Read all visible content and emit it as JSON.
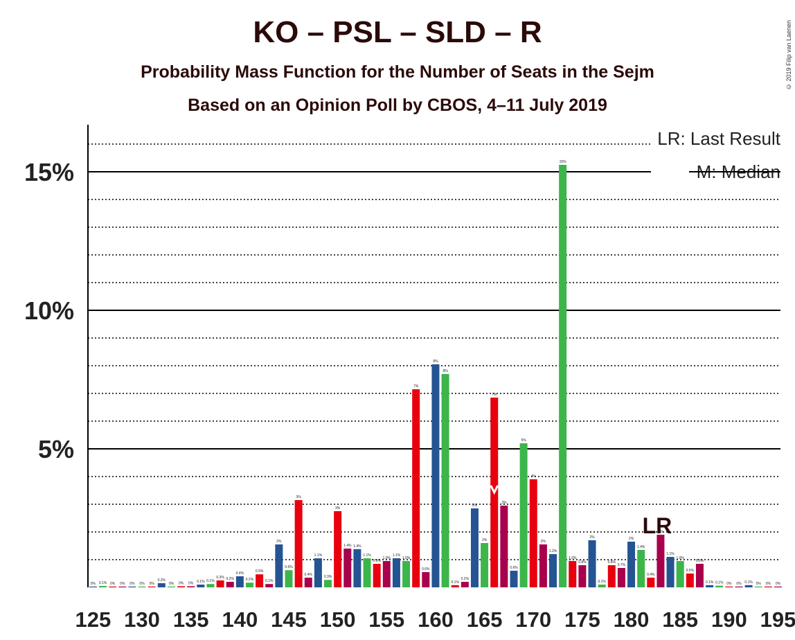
{
  "title": "KO – PSL – SLD – R",
  "subtitle": "Probability Mass Function for the Number of Seats in the Sejm",
  "subtitle2": "Based on an Opinion Poll by CBOS, 4–11 July 2019",
  "copyright": "© 2019 Filip van Laenen",
  "legend": {
    "lr": "LR: Last Result",
    "median": "M: Median"
  },
  "colors": {
    "red": "#e8000f",
    "blue": "#255493",
    "green": "#3cb64a",
    "darkred": "#a8004c",
    "axis": "#000000"
  },
  "chart_data": {
    "type": "bar",
    "xlabel": "",
    "ylabel": "",
    "x_ticks": [
      "125",
      "130",
      "135",
      "140",
      "145",
      "150",
      "155",
      "160",
      "165",
      "170",
      "175",
      "180",
      "185",
      "190",
      "195"
    ],
    "y_ticks": [
      {
        "value": 5,
        "label": "5%"
      },
      {
        "value": 10,
        "label": "10%"
      },
      {
        "value": 15,
        "label": "15%"
      }
    ],
    "ylim": [
      0,
      16.7
    ],
    "xlim": [
      124.5,
      195.5
    ],
    "grid": "dotted lines every 1%, solid lines every 5%",
    "legend_position": "top-right",
    "last_result_seat": 183,
    "median_seat": 166,
    "last_result_marker": "LR",
    "median_marker": "M",
    "bars": [
      {
        "seats": 125,
        "value": 0.02,
        "label": "0%",
        "color": "blue"
      },
      {
        "seats": 126,
        "value": 0.05,
        "label": "0.1%",
        "color": "green"
      },
      {
        "seats": 127,
        "value": 0.02,
        "label": "0%",
        "color": "red"
      },
      {
        "seats": 128,
        "value": 0.02,
        "label": "0%",
        "color": "darkred"
      },
      {
        "seats": 129,
        "value": 0.02,
        "label": "0%",
        "color": "blue"
      },
      {
        "seats": 130,
        "value": 0.02,
        "label": "0%",
        "color": "green"
      },
      {
        "seats": 131,
        "value": 0.02,
        "label": "0%",
        "color": "red"
      },
      {
        "seats": 132,
        "value": 0.15,
        "label": "0.2%",
        "color": "blue"
      },
      {
        "seats": 133,
        "value": 0.02,
        "label": "0%",
        "color": "green"
      },
      {
        "seats": 134,
        "value": 0.04,
        "label": "0%",
        "color": "red"
      },
      {
        "seats": 135,
        "value": 0.04,
        "label": "0%",
        "color": "darkred"
      },
      {
        "seats": 136,
        "value": 0.1,
        "label": "0.1%",
        "color": "blue"
      },
      {
        "seats": 137,
        "value": 0.12,
        "label": "0.1%",
        "color": "green"
      },
      {
        "seats": 138,
        "value": 0.25,
        "label": "0.3%",
        "color": "red"
      },
      {
        "seats": 139,
        "value": 0.2,
        "label": "0.2%",
        "color": "darkred"
      },
      {
        "seats": 140,
        "value": 0.4,
        "label": "0.4%",
        "color": "blue"
      },
      {
        "seats": 141,
        "value": 0.17,
        "label": "0.2%",
        "color": "green"
      },
      {
        "seats": 142,
        "value": 0.47,
        "label": "0.5%",
        "color": "red"
      },
      {
        "seats": 143,
        "value": 0.12,
        "label": "0.1%",
        "color": "darkred"
      },
      {
        "seats": 144,
        "value": 1.55,
        "label": "2%",
        "color": "blue"
      },
      {
        "seats": 145,
        "value": 0.62,
        "label": "0.6%",
        "color": "green"
      },
      {
        "seats": 146,
        "value": 3.15,
        "label": "3%",
        "color": "red"
      },
      {
        "seats": 147,
        "value": 0.35,
        "label": "0.4%",
        "color": "darkred"
      },
      {
        "seats": 148,
        "value": 1.05,
        "label": "1.1%",
        "color": "blue"
      },
      {
        "seats": 149,
        "value": 0.27,
        "label": "0.3%",
        "color": "green"
      },
      {
        "seats": 150,
        "value": 2.75,
        "label": "3%",
        "color": "red"
      },
      {
        "seats": 151,
        "value": 1.4,
        "label": "1.4%",
        "color": "darkred"
      },
      {
        "seats": 152,
        "value": 1.38,
        "label": "1.4%",
        "color": "blue"
      },
      {
        "seats": 153,
        "value": 1.05,
        "label": "1.1%",
        "color": "green"
      },
      {
        "seats": 154,
        "value": 0.85,
        "label": "0.9%",
        "color": "red"
      },
      {
        "seats": 155,
        "value": 0.95,
        "label": "1.0%",
        "color": "darkred"
      },
      {
        "seats": 156,
        "value": 1.05,
        "label": "1.1%",
        "color": "blue"
      },
      {
        "seats": 157,
        "value": 0.95,
        "label": "1.0%",
        "color": "green"
      },
      {
        "seats": 158,
        "value": 7.15,
        "label": "7%",
        "color": "red"
      },
      {
        "seats": 159,
        "value": 0.55,
        "label": "0.6%",
        "color": "darkred"
      },
      {
        "seats": 160,
        "value": 8.05,
        "label": "8%",
        "color": "blue"
      },
      {
        "seats": 161,
        "value": 7.7,
        "label": "8%",
        "color": "green"
      },
      {
        "seats": 162,
        "value": 0.08,
        "label": "0.1%",
        "color": "red"
      },
      {
        "seats": 163,
        "value": 0.2,
        "label": "0.2%",
        "color": "darkred"
      },
      {
        "seats": 164,
        "value": 2.85,
        "label": "3%",
        "color": "blue"
      },
      {
        "seats": 165,
        "value": 1.6,
        "label": "2%",
        "color": "green"
      },
      {
        "seats": 166,
        "value": 6.85,
        "label": "7%",
        "color": "red"
      },
      {
        "seats": 167,
        "value": 2.95,
        "label": "3%",
        "color": "darkred"
      },
      {
        "seats": 168,
        "value": 0.6,
        "label": "0.6%",
        "color": "blue"
      },
      {
        "seats": 169,
        "value": 5.2,
        "label": "5%",
        "color": "green"
      },
      {
        "seats": 170,
        "value": 3.9,
        "label": "4%",
        "color": "red"
      },
      {
        "seats": 171,
        "value": 1.55,
        "label": "2%",
        "color": "darkred"
      },
      {
        "seats": 172,
        "value": 1.2,
        "label": "1.2%",
        "color": "blue"
      },
      {
        "seats": 173,
        "value": 15.25,
        "label": "15%",
        "color": "green"
      },
      {
        "seats": 174,
        "value": 0.95,
        "label": "1.0%",
        "color": "red"
      },
      {
        "seats": 175,
        "value": 0.8,
        "label": "0.8%",
        "color": "darkred"
      },
      {
        "seats": 176,
        "value": 1.7,
        "label": "2%",
        "color": "blue"
      },
      {
        "seats": 177,
        "value": 0.1,
        "label": "0.1%",
        "color": "green"
      },
      {
        "seats": 178,
        "value": 0.8,
        "label": "0.8%",
        "color": "red"
      },
      {
        "seats": 179,
        "value": 0.7,
        "label": "0.7%",
        "color": "darkred"
      },
      {
        "seats": 180,
        "value": 1.65,
        "label": "2%",
        "color": "blue"
      },
      {
        "seats": 181,
        "value": 1.35,
        "label": "1.4%",
        "color": "green"
      },
      {
        "seats": 182,
        "value": 0.35,
        "label": "0.4%",
        "color": "red"
      },
      {
        "seats": 183,
        "value": 1.9,
        "label": "2%",
        "color": "darkred"
      },
      {
        "seats": 184,
        "value": 1.1,
        "label": "1.1%",
        "color": "blue"
      },
      {
        "seats": 185,
        "value": 0.95,
        "label": "1.0%",
        "color": "green"
      },
      {
        "seats": 186,
        "value": 0.5,
        "label": "0.5%",
        "color": "red"
      },
      {
        "seats": 187,
        "value": 0.85,
        "label": "0.9%",
        "color": "darkred"
      },
      {
        "seats": 188,
        "value": 0.08,
        "label": "0.1%",
        "color": "blue"
      },
      {
        "seats": 189,
        "value": 0.06,
        "label": "0.1%",
        "color": "green"
      },
      {
        "seats": 190,
        "value": 0.02,
        "label": "0%",
        "color": "red"
      },
      {
        "seats": 191,
        "value": 0.02,
        "label": "0%",
        "color": "darkred"
      },
      {
        "seats": 192,
        "value": 0.08,
        "label": "0.1%",
        "color": "blue"
      },
      {
        "seats": 193,
        "value": 0.02,
        "label": "0%",
        "color": "green"
      },
      {
        "seats": 194,
        "value": 0.02,
        "label": "0%",
        "color": "red"
      },
      {
        "seats": 195,
        "value": 0.02,
        "label": "0%",
        "color": "darkred"
      }
    ]
  }
}
